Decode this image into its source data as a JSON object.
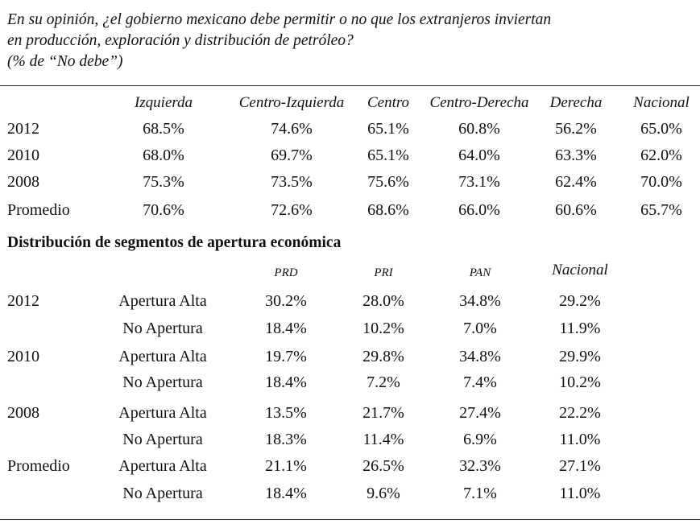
{
  "title": {
    "line1": "En su opinión, ¿el gobierno mexicano debe permitir o no que los extranjeros inviertan",
    "line2": "en producción, exploración y distribución de petróleo?",
    "line3": "(% de “No debe”)"
  },
  "table1": {
    "columns": [
      "Izquierda",
      "Centro-Izquierda",
      "Centro",
      "Centro-Derecha",
      "Derecha",
      "Nacional"
    ],
    "rows": [
      {
        "label": "2012",
        "values": [
          "68.5%",
          "74.6%",
          "65.1%",
          "60.8%",
          "56.2%",
          "65.0%"
        ]
      },
      {
        "label": "2010",
        "values": [
          "68.0%",
          "69.7%",
          "65.1%",
          "64.0%",
          "63.3%",
          "62.0%"
        ]
      },
      {
        "label": "2008",
        "values": [
          "75.3%",
          "73.5%",
          "75.6%",
          "73.1%",
          "62.4%",
          "70.0%"
        ]
      },
      {
        "label": "Promedio",
        "values": [
          "70.6%",
          "72.6%",
          "68.6%",
          "66.0%",
          "60.6%",
          "65.7%"
        ]
      }
    ]
  },
  "table2": {
    "section_title": "Distribución de segmentos de apertura económica",
    "columns": [
      "PRD",
      "PRI",
      "PAN",
      "Nacional"
    ],
    "groups": [
      {
        "label": "2012",
        "rows": [
          {
            "segment": "Apertura Alta",
            "values": [
              "30.2%",
              "28.0%",
              "34.8%",
              "29.2%"
            ]
          },
          {
            "segment": "No Apertura",
            "values": [
              "18.4%",
              "10.2%",
              "7.0%",
              "11.9%"
            ]
          }
        ]
      },
      {
        "label": "2010",
        "rows": [
          {
            "segment": "Apertura Alta",
            "values": [
              "19.7%",
              "29.8%",
              "34.8%",
              "29.9%"
            ]
          },
          {
            "segment": "No Apertura",
            "values": [
              "18.4%",
              "7.2%",
              "7.4%",
              "10.2%"
            ]
          }
        ]
      },
      {
        "label": "2008",
        "rows": [
          {
            "segment": "Apertura Alta",
            "values": [
              "13.5%",
              "21.7%",
              "27.4%",
              "22.2%"
            ]
          },
          {
            "segment": "No Apertura",
            "values": [
              "18.3%",
              "11.4%",
              "6.9%",
              "11.0%"
            ]
          }
        ]
      },
      {
        "label": "Promedio",
        "rows": [
          {
            "segment": "Apertura Alta",
            "values": [
              "21.1%",
              "26.5%",
              "32.3%",
              "27.1%"
            ]
          },
          {
            "segment": "No Apertura",
            "values": [
              "18.4%",
              "9.6%",
              "7.1%",
              "11.0%"
            ]
          }
        ]
      }
    ]
  }
}
